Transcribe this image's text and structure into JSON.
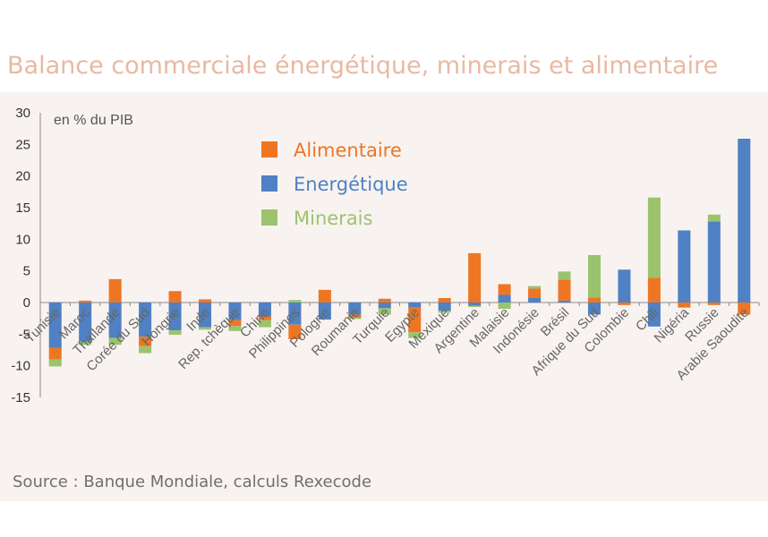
{
  "title": "Balance commerciale énergétique, minerais et alimentaire",
  "source": "Source : Banque Mondiale, calculs Rexecode",
  "colors": {
    "alimentaire": "#ee7623",
    "energetique": "#4f81c4",
    "minerais": "#9bc36e",
    "title": "#e8b9a2",
    "background": "#f8f3f0"
  },
  "chart_data": {
    "type": "bar",
    "stacked": true,
    "ylabel": "en % du PIB",
    "ylim": [
      -15,
      30
    ],
    "yticks": [
      -15,
      -10,
      -5,
      0,
      5,
      10,
      15,
      20,
      25,
      30
    ],
    "legend_position": "top-center",
    "categories": [
      "Tunisie",
      "Maroc",
      "Thaïlande",
      "Corée du Sud",
      "Hongrie",
      "Inde",
      "Rep. tchèque",
      "Chine",
      "Philippines",
      "Pologne",
      "Roumanie",
      "Turquie",
      "Egypte",
      "Mexique",
      "Argentine",
      "Malaisie",
      "Indonésie",
      "Brésil",
      "Afrique du Sud",
      "Colombie",
      "Chili",
      "Nigéria",
      "Russie",
      "Arabie Saoudite"
    ],
    "series": [
      {
        "name": "Energétique",
        "key": "energetique",
        "values": [
          -7.2,
          -6.2,
          -5.6,
          -5.4,
          -4.4,
          -3.9,
          -2.8,
          -2.2,
          -3.5,
          -2.7,
          -1.9,
          -0.9,
          -0.8,
          -1.3,
          -0.5,
          1.2,
          0.8,
          0.3,
          -1.9,
          5.2,
          -3.8,
          11.4,
          12.8,
          25.9
        ]
      },
      {
        "name": "Alimentaire",
        "key": "alimentaire",
        "values": [
          -1.8,
          0.3,
          3.7,
          -1.5,
          1.8,
          0.5,
          -0.9,
          -0.6,
          -2.3,
          2.0,
          -0.5,
          0.6,
          -3.9,
          0.7,
          7.8,
          1.7,
          1.4,
          3.3,
          0.8,
          -0.4,
          3.9,
          -0.8,
          -0.4,
          -1.9
        ]
      },
      {
        "name": "Minerais",
        "key": "minerais",
        "values": [
          -1.1,
          -0.5,
          -1.1,
          -1.1,
          -0.7,
          -0.4,
          -0.8,
          -1.1,
          0.4,
          0.0,
          -0.2,
          -1.0,
          -0.9,
          -0.3,
          -0.2,
          -1.0,
          0.4,
          1.3,
          6.7,
          0.0,
          12.7,
          0.0,
          1.1,
          0.0
        ]
      }
    ],
    "legend": [
      {
        "key": "alimentaire",
        "label": "Alimentaire"
      },
      {
        "key": "energetique",
        "label": "Energétique"
      },
      {
        "key": "minerais",
        "label": "Minerais"
      }
    ]
  }
}
